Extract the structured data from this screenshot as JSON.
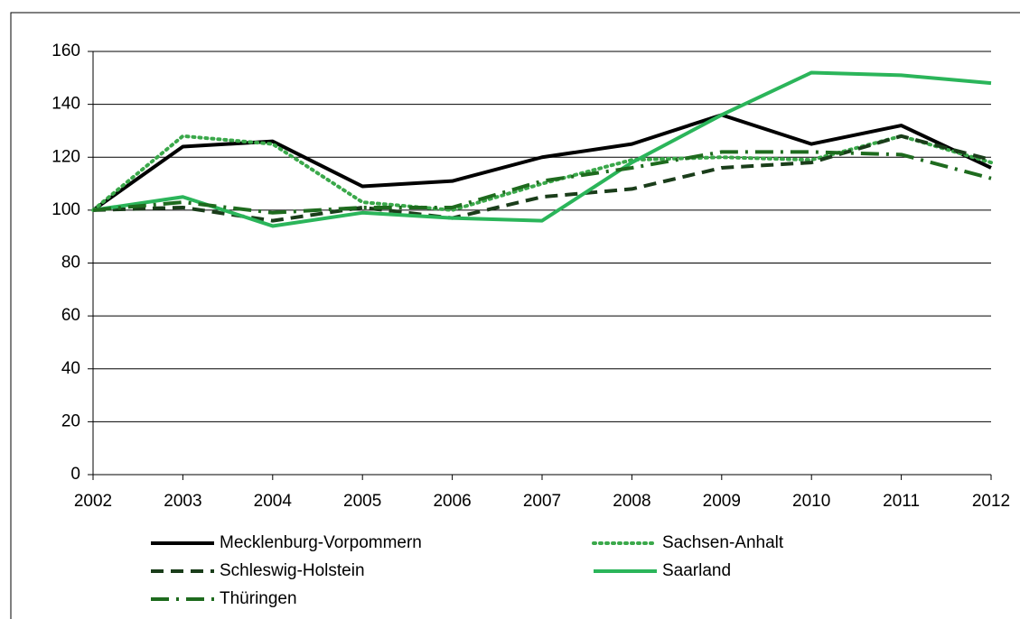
{
  "chart_data": {
    "type": "line",
    "x": [
      2002,
      2003,
      2004,
      2005,
      2006,
      2007,
      2008,
      2009,
      2010,
      2011,
      2012
    ],
    "xlim": [
      2002,
      2012
    ],
    "xticks": [
      2002,
      2003,
      2004,
      2005,
      2006,
      2007,
      2008,
      2009,
      2010,
      2011,
      2012
    ],
    "ylim": [
      0,
      160
    ],
    "yticks": [
      0,
      20,
      40,
      60,
      80,
      100,
      120,
      140,
      160
    ],
    "grid": true,
    "legend": "bottom",
    "series": [
      {
        "name": "Mecklenburg-Vorpommern",
        "color": "#000000",
        "dash": "solid",
        "values": [
          100,
          124,
          126,
          109,
          111,
          120,
          125,
          136,
          125,
          132,
          116
        ]
      },
      {
        "name": "Sachsen-Anhalt",
        "color": "#3aa84a",
        "dash": "dotted",
        "values": [
          100,
          128,
          125,
          103,
          100,
          110,
          119,
          120,
          119,
          128,
          118
        ]
      },
      {
        "name": "Schleswig-Holstein",
        "color": "#1a3d1a",
        "dash": "dashed",
        "values": [
          100,
          101,
          96,
          101,
          97,
          105,
          108,
          116,
          118,
          128,
          119
        ]
      },
      {
        "name": "Saarland",
        "color": "#2bb55a",
        "dash": "solid",
        "values": [
          100,
          105,
          94,
          99,
          97,
          96,
          118,
          136,
          152,
          151,
          148
        ]
      },
      {
        "name": "Thüringen",
        "color": "#1e6b1e",
        "dash": "dashdot",
        "values": [
          100,
          103,
          99,
          101,
          101,
          111,
          116,
          122,
          122,
          121,
          112
        ]
      }
    ]
  }
}
